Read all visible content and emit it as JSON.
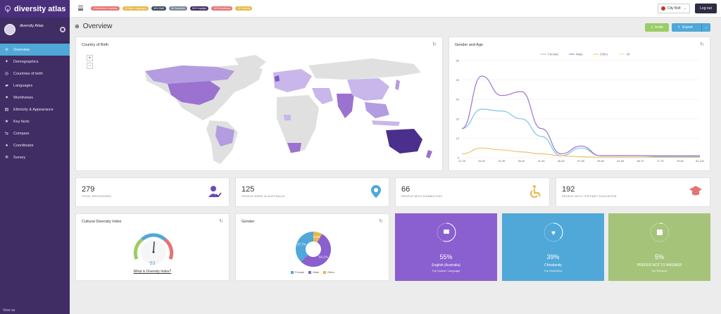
{
  "app": {
    "title": "diversity atlas"
  },
  "profile": {
    "name": "diversity Atlas"
  },
  "sidebar": {
    "items": [
      {
        "label": "Overview",
        "icon": "crosshair-icon",
        "active": true
      },
      {
        "label": "Demographics",
        "icon": "person-icon"
      },
      {
        "label": "Countries of birth",
        "icon": "globe-icon"
      },
      {
        "label": "Languages",
        "icon": "speech-bubble-icon"
      },
      {
        "label": "Worldviews",
        "icon": "heart-icon"
      },
      {
        "label": "Ethnicity & Appearance",
        "icon": "id-card-icon"
      },
      {
        "label": "Key facts",
        "icon": "star-icon"
      },
      {
        "label": "Compare",
        "icon": "compare-icon"
      },
      {
        "label": "Coordinator",
        "icon": "user-icon"
      },
      {
        "label": "Survey",
        "icon": "gear-icon"
      }
    ],
    "view_as": "View as"
  },
  "topbar": {
    "tags": [
      {
        "label": "1 Worldview Countries",
        "color": "#e57373"
      },
      {
        "label": "15 Main Languages",
        "color": "#e6b84a"
      },
      {
        "label": "44% Staff",
        "color": "#3d4b5c"
      },
      {
        "label": "48 Countries",
        "color": "#7a8a99"
      },
      {
        "label": "50% Daylight",
        "color": "#3f2d63"
      },
      {
        "label": "34% Worldview",
        "color": "#e57373"
      },
      {
        "label": "16 Ethnicity",
        "color": "#e6b84a"
      }
    ],
    "department": "City Bolt",
    "logout": "Log out"
  },
  "page": {
    "title": "Overview",
    "invite": "Invite",
    "export": "Export"
  },
  "cards": {
    "country_of_birth": "Country of Birth",
    "gender_age": "Gender and Age",
    "cultural_diversity": "Cultural Diversity Index",
    "gender": "Gender"
  },
  "stats": [
    {
      "value": "279",
      "label": "TOTAL REGISTERED",
      "icon": "user-check-icon",
      "color": "#6a4bc4"
    },
    {
      "value": "125",
      "label": "PEOPLE BORN IN AUSTRALIA",
      "icon": "map-pin-icon",
      "color": "#4fa8d8"
    },
    {
      "value": "66",
      "label": "PEOPLE WITH DISABILITIES",
      "icon": "wheelchair-icon",
      "color": "#e6b84a"
    },
    {
      "value": "192",
      "label": "PEOPLE WITH TERTIARY EDUCATION",
      "icon": "graduation-cap-icon",
      "color": "#e57373"
    }
  ],
  "gauge": {
    "value": "53",
    "link": "What is Diversity Index?"
  },
  "tiles": [
    {
      "pct": "55%",
      "title": "English (Australia)",
      "subtitle": "Top Spoken Language",
      "color": "#8a5fd0",
      "icon": "speech-bubble-icon"
    },
    {
      "pct": "39%",
      "title": "Christianity",
      "subtitle": "Top Worldview",
      "color": "#4fa8d8",
      "icon": "heart-icon"
    },
    {
      "pct": "5%",
      "title": "PREFER NOT TO ANSWER",
      "subtitle": "Top Ethnicity",
      "color": "#a5c47a",
      "icon": "puzzle-icon"
    }
  ],
  "chart_data": [
    {
      "type": "line",
      "title": "Gender and Age",
      "categories": [
        "21-25",
        "26-30",
        "31-35",
        "36-40",
        "41-45",
        "46-50",
        "51-55",
        "56-60",
        "61-65",
        "66-70",
        "71-75",
        "76-80",
        "81-100"
      ],
      "series": [
        {
          "name": "Female",
          "color": "#7ec4e8",
          "values": [
            15,
            25,
            24,
            20,
            11,
            1,
            5,
            1,
            1,
            1,
            0.5,
            0.5,
            0.5
          ]
        },
        {
          "name": "Male",
          "color": "#9b72cf",
          "values": [
            15,
            42,
            32,
            34,
            15,
            2,
            6,
            1,
            1,
            1,
            1,
            1,
            1
          ]
        },
        {
          "name": "Other",
          "color": "#f0c070",
          "values": [
            2,
            5,
            4,
            3,
            2,
            1,
            0.5,
            0.2,
            0.2,
            0.2,
            0.2,
            0.2,
            0.2
          ]
        },
        {
          "name": "All",
          "color": "#f7d98c",
          "values": [
            null,
            null,
            null,
            null,
            null,
            null,
            null,
            null,
            null,
            null,
            null,
            null,
            null
          ]
        }
      ],
      "ylim": [
        0,
        50
      ],
      "yticks": [
        0,
        10,
        20,
        30,
        40,
        50
      ],
      "legend": "top-center",
      "grid": true
    },
    {
      "type": "pie",
      "title": "Gender",
      "slices": [
        {
          "name": "Female",
          "value": 37.7,
          "label": "37.7%",
          "color": "#4fa8d8"
        },
        {
          "name": "Male",
          "value": 54.1,
          "label": "54.1%",
          "color": "#8a5fd0"
        },
        {
          "name": "Other",
          "value": 8.2,
          "label": "8.2%",
          "color": "#e6b84a"
        }
      ]
    }
  ]
}
